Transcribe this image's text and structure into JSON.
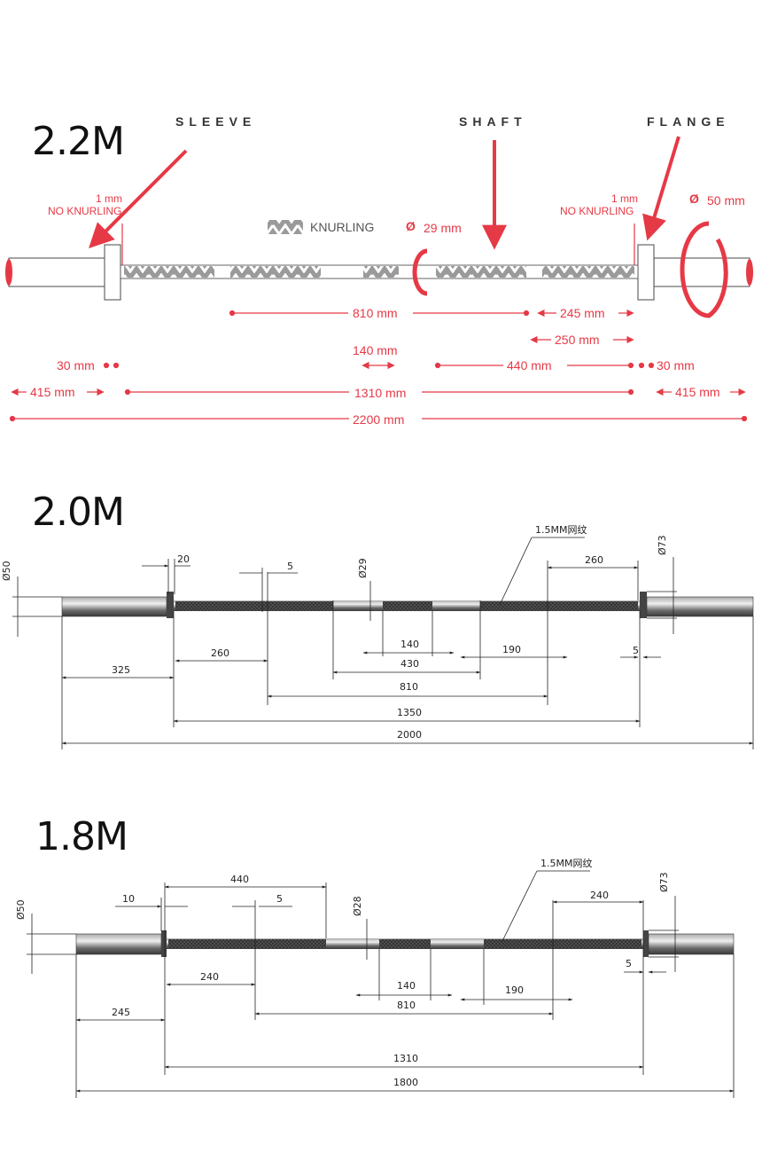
{
  "colors": {
    "accent": "#e63946",
    "steel": "#555555",
    "knurl": "#444444"
  },
  "section_22": {
    "title": "2.2M",
    "labels": {
      "sleeve": "SLEEVE",
      "shaft": "SHAFT",
      "flange": "FLANGE"
    },
    "no_knurl_left": [
      "1 mm",
      "NO KNURLING"
    ],
    "no_knurl_right": [
      "1 mm",
      "NO KNURLING"
    ],
    "knurling_legend": "KNURLING",
    "shaft_dia": "29 mm",
    "flange_dia": "50 mm",
    "dims": {
      "d810": "810 mm",
      "d245": "245 mm",
      "d250": "250 mm",
      "d140": "140 mm",
      "d440": "440 mm",
      "d30l": "30 mm",
      "d30r": "30 mm",
      "d415l": "415 mm",
      "d1310": "1310 mm",
      "d415r": "415 mm",
      "d2200": "2200 mm"
    }
  },
  "section_20": {
    "title": "2.0M",
    "callout": "1.5MM网纹",
    "dims": {
      "dia50": "Ø50",
      "dia29": "Ø29",
      "dia73": "Ø73",
      "d20": "20",
      "d5top": "5",
      "d260r": "260",
      "d260l": "260",
      "d325": "325",
      "d140": "140",
      "d430": "430",
      "d190": "190",
      "d5r": "5",
      "d810": "810",
      "d1350": "1350",
      "d2000": "2000"
    }
  },
  "section_18": {
    "title": "1.8M",
    "callout": "1.5MM网纹",
    "dims": {
      "dia50": "Ø50",
      "dia28": "Ø28",
      "dia73": "Ø73",
      "d10": "10",
      "d440": "440",
      "d5top": "5",
      "d240r": "240",
      "d240l": "240",
      "d245": "245",
      "d140": "140",
      "d190": "190",
      "d810": "810",
      "d5r": "5",
      "d1310": "1310",
      "d1800": "1800"
    }
  }
}
